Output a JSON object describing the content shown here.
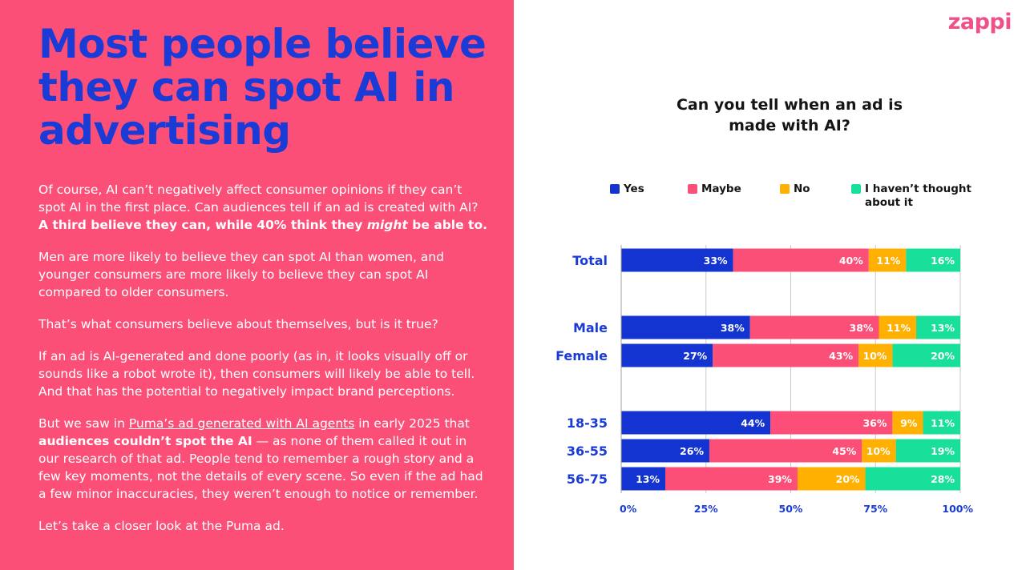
{
  "left_panel": {
    "headline_lines": [
      "Most people believe",
      "they can spot AI in",
      "advertising"
    ],
    "p1_text": "Of course, AI can’t negatively affect consumer opinions if they can’t spot AI in the first place. Can audiences tell if an ad is created with AI?",
    "p1_bold_a": "A third believe they can, while 40% think they",
    "p1_bold_em": "might",
    "p1_bold_b": "be able to.",
    "p2": "Men are more likely to believe they can spot AI than women, and younger consumers are more likely to believe they can spot AI compared to older consumers.",
    "p3": "That’s what consumers believe about themselves, but is it true?",
    "p4": "If an ad is AI-generated and done poorly (as in, it looks visually off or sounds like a robot wrote it), then consumers will likely be able to tell. And that has the potential to negatively impact brand perceptions.",
    "p5_a": "But we saw in",
    "p5_link": "Puma’s ad generated with AI agents",
    "p5_b": "in early 2025 that",
    "p5_bold": "audiences couldn’t spot the AI",
    "p5_c": "— as none of them called it out in our research of that ad. People tend to remember a rough story and a few key moments, not the details of every scene. So even if the ad had a few minor inaccuracies, they weren’t enough to notice or remember.",
    "p6": "Let’s take a closer look at the Puma ad."
  },
  "brand": {
    "logo_text": "zappi"
  },
  "colors": {
    "left_bg": "#fb4f78",
    "headline": "#1b3bd6",
    "yes": "#1334d1",
    "maybe": "#fb4f78",
    "no": "#ffb000",
    "havent": "#18e09a",
    "category_label": "#1b3bd6",
    "grid": "#c8c8c8"
  },
  "legend": [
    {
      "key": "yes",
      "label": "Yes"
    },
    {
      "key": "maybe",
      "label": "Maybe"
    },
    {
      "key": "no",
      "label": "No"
    },
    {
      "key": "havent",
      "label": "I haven’t thought about it"
    }
  ],
  "chart_data": {
    "type": "bar",
    "orientation": "horizontal",
    "stacked": true,
    "title": "Can you tell when an ad is made with AI?",
    "categories": [
      "Total",
      "Male",
      "Female",
      "18-35",
      "36-55",
      "56-75"
    ],
    "series": [
      {
        "name": "Yes",
        "values": [
          33,
          38,
          27,
          44,
          26,
          13
        ]
      },
      {
        "name": "Maybe",
        "values": [
          40,
          38,
          43,
          36,
          45,
          39
        ]
      },
      {
        "name": "No",
        "values": [
          11,
          11,
          10,
          9,
          10,
          20
        ]
      },
      {
        "name": "I haven’t thought about it",
        "values": [
          16,
          13,
          20,
          11,
          19,
          28
        ]
      }
    ],
    "xlim": [
      0,
      100
    ],
    "xticks": [
      0,
      25,
      50,
      75,
      100
    ],
    "xtick_labels": [
      "0%",
      "25%",
      "50%",
      "75%",
      "100%"
    ],
    "grid": true,
    "legend_position": "top"
  }
}
